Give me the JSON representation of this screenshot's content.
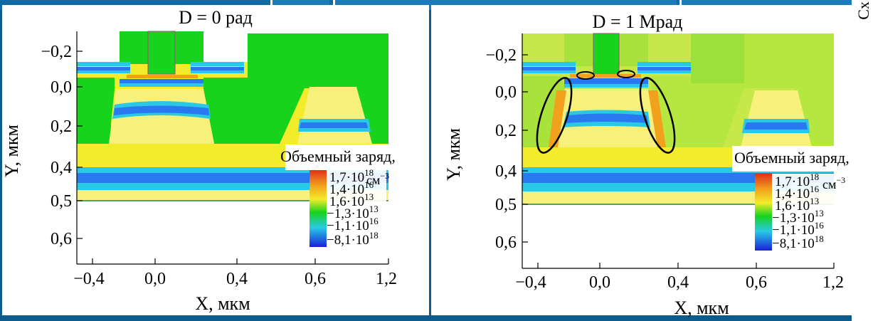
{
  "figures": [
    {
      "title": "D = 0 рад",
      "xlabel": "X, мкм",
      "ylabel": "Y, мкм",
      "xticks": [
        "−0,4",
        "0,0",
        "0,4",
        "0,6",
        "1,2"
      ],
      "yticks": [
        "−0,2",
        "0,0",
        "0,2",
        "0,4",
        "0,5",
        "0,6"
      ],
      "colorbar_title": "Объемный заряд,",
      "colorbar_unit": "см",
      "colorbar_unit_exp": "−3",
      "colorbar_labels": [
        {
          "mant": "1,7·10",
          "exp": "18"
        },
        {
          "mant": "1,4·10",
          "exp": "16"
        },
        {
          "mant": "1,6·10",
          "exp": "13"
        },
        {
          "mant": "−1,3·10",
          "exp": "13"
        },
        {
          "mant": "−1,1·10",
          "exp": "16"
        },
        {
          "mant": "−8,1·10",
          "exp": "18"
        }
      ]
    },
    {
      "title": "D = 1 Мрад",
      "xlabel": "X, мкм",
      "ylabel": "Y, мкм",
      "xticks": [
        "−0,4",
        "0,0",
        "0,4",
        "0,6",
        "1,2"
      ],
      "yticks": [
        "−0,2",
        "0,0",
        "0,2",
        "0,4",
        "0,5",
        "0,6"
      ],
      "colorbar_title": "Объемный заряд,",
      "colorbar_unit": "см",
      "colorbar_unit_exp": "−3",
      "colorbar_labels": [
        {
          "mant": "1,7·10",
          "exp": "18"
        },
        {
          "mant": "1,4·10",
          "exp": "16"
        },
        {
          "mant": "1,6·10",
          "exp": "13"
        },
        {
          "mant": "−1,3·10",
          "exp": "13"
        },
        {
          "mant": "−1,1·10",
          "exp": "16"
        },
        {
          "mant": "−8,1·10",
          "exp": "18"
        }
      ]
    }
  ],
  "edge_text": "Сх",
  "colors": {
    "slide_bg": "#0d5a8c",
    "green": "#17d31c",
    "yellow": "#f3ec2a",
    "light_yellow": "#f7f07a",
    "orange": "#f2a11c",
    "red": "#e0301a",
    "cyan": "#29c9e6",
    "blue": "#2a78ef",
    "dark_blue": "#1a20d8",
    "lime": "#a8e23a"
  }
}
